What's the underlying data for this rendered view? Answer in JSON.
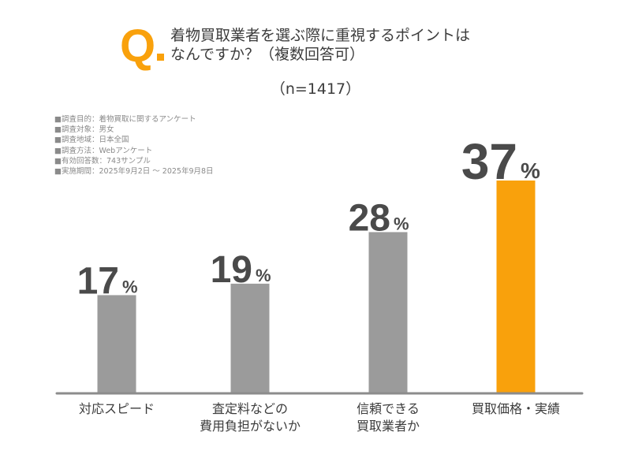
{
  "header": {
    "q_mark": "Q",
    "question_line1": "着物買取業者を選ぶ際に重視するポイントは",
    "question_line2": "なんですか？（複数回答可）",
    "sample_size": "（n=1417）"
  },
  "survey_meta": [
    "■調査目的：着物買取に関するアンケート",
    "■調査対象：男女",
    "■調査地域：日本全国",
    "■調査方法：Webアンケート",
    "■有効回答数：743サンプル",
    "■実施期間：2025年9月2日 ～ 2025年9月8日"
  ],
  "colors": {
    "accent": "#f9a10c",
    "bar": "#9b9b9b",
    "axis": "#8c8c8c",
    "value_text": "#4a4a4a"
  },
  "chart_data": {
    "type": "bar",
    "title": "着物買取業者を選ぶ際に重視するポイントはなんですか？（複数回答可）",
    "subtitle": "（n=1417）",
    "categories": [
      "対応スピード",
      "査定料などの費用負担がないか",
      "信頼できる買取業者か",
      "買取価格・実績"
    ],
    "category_lines": [
      [
        "対応スピード"
      ],
      [
        "査定料などの",
        "費用負担がないか"
      ],
      [
        "信頼できる",
        "買取業者か"
      ],
      [
        "買取価格・実績"
      ]
    ],
    "values": [
      17,
      19,
      28,
      37
    ],
    "unit": "%",
    "highlight_index": 3,
    "xlabel": "",
    "ylabel": "",
    "ylim": [
      0,
      37
    ],
    "grid": false,
    "legend": "none"
  }
}
